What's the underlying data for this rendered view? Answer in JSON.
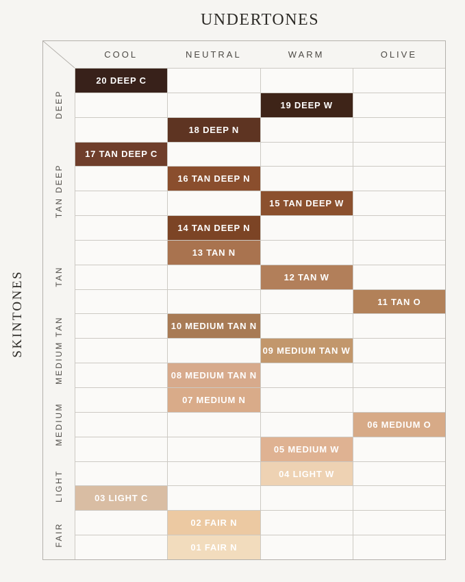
{
  "title": "UNDERTONES",
  "side_label": "SKINTONES",
  "colors": {
    "page_bg": "#f6f5f2",
    "cell_bg": "#fbfaf8",
    "grid_line": "#ccc9c3",
    "outer_border": "#b3b0ab",
    "heading_text": "#2d2b27",
    "label_text": "#4c4944",
    "swatch_text": "#ffffff"
  },
  "chart_data": {
    "type": "table",
    "title": "UNDERTONES",
    "columns_axis_label": "UNDERTONES",
    "rows_axis_label": "SKINTONES",
    "columns": [
      "COOL",
      "NEUTRAL",
      "WARM",
      "OLIVE"
    ],
    "row_groups": [
      {
        "label": "DEEP",
        "count": 3
      },
      {
        "label": "TAN DEEP",
        "count": 4
      },
      {
        "label": "TAN",
        "count": 3
      },
      {
        "label": "MEDIUM TAN",
        "count": 3
      },
      {
        "label": "MEDIUM",
        "count": 3
      },
      {
        "label": "LIGHT",
        "count": 2
      },
      {
        "label": "FAIR",
        "count": 2
      }
    ],
    "shades": [
      {
        "label": "20 DEEP C",
        "undertone": "COOL",
        "skintone": "DEEP",
        "color": "#38211a"
      },
      {
        "label": "19 DEEP W",
        "undertone": "WARM",
        "skintone": "DEEP",
        "color": "#3e2418"
      },
      {
        "label": "18 DEEP N",
        "undertone": "NEUTRAL",
        "skintone": "DEEP",
        "color": "#5e3422"
      },
      {
        "label": "17 TAN DEEP C",
        "undertone": "COOL",
        "skintone": "TAN DEEP",
        "color": "#6f3e2b"
      },
      {
        "label": "16 TAN DEEP N",
        "undertone": "NEUTRAL",
        "skintone": "TAN DEEP",
        "color": "#8a4e2d"
      },
      {
        "label": "15 TAN DEEP W",
        "undertone": "WARM",
        "skintone": "TAN DEEP",
        "color": "#8b502e"
      },
      {
        "label": "14 TAN DEEP N",
        "undertone": "NEUTRAL",
        "skintone": "TAN DEEP",
        "color": "#7c4425"
      },
      {
        "label": "13 TAN N",
        "undertone": "NEUTRAL",
        "skintone": "TAN",
        "color": "#a9734f"
      },
      {
        "label": "12 TAN W",
        "undertone": "WARM",
        "skintone": "TAN",
        "color": "#b27f5a"
      },
      {
        "label": "11 TAN O",
        "undertone": "OLIVE",
        "skintone": "TAN",
        "color": "#b28159"
      },
      {
        "label": "10 MEDIUM TAN N",
        "undertone": "NEUTRAL",
        "skintone": "MEDIUM TAN",
        "color": "#a87b55"
      },
      {
        "label": "09 MEDIUM TAN W",
        "undertone": "WARM",
        "skintone": "MEDIUM TAN",
        "color": "#c2976c"
      },
      {
        "label": "08 MEDIUM TAN N",
        "undertone": "NEUTRAL",
        "skintone": "MEDIUM TAN",
        "color": "#d7aa8c"
      },
      {
        "label": "07 MEDIUM N",
        "undertone": "NEUTRAL",
        "skintone": "MEDIUM",
        "color": "#d9ab89"
      },
      {
        "label": "06 MEDIUM O",
        "undertone": "OLIVE",
        "skintone": "MEDIUM",
        "color": "#d7aa87"
      },
      {
        "label": "05 MEDIUM W",
        "undertone": "WARM",
        "skintone": "MEDIUM",
        "color": "#dfb292"
      },
      {
        "label": "04 LIGHT W",
        "undertone": "WARM",
        "skintone": "LIGHT",
        "color": "#eed2b3"
      },
      {
        "label": "03 LIGHT C",
        "undertone": "COOL",
        "skintone": "LIGHT",
        "color": "#d9bda3"
      },
      {
        "label": "02 FAIR N",
        "undertone": "NEUTRAL",
        "skintone": "FAIR",
        "color": "#ecc9a2"
      },
      {
        "label": "01 FAIR N",
        "undertone": "NEUTRAL",
        "skintone": "FAIR",
        "color": "#f2dcbd"
      }
    ]
  }
}
